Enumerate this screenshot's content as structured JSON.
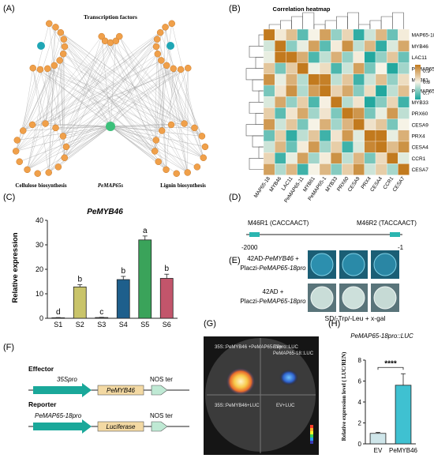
{
  "panels": {
    "A": {
      "letter": "(A)",
      "title": "Transcription factors",
      "left_label": "Cellulose biosynthesis",
      "center_label": "PeMAP65s",
      "right_label": "Lignin biosynthesis",
      "node_color": "#f0a04a",
      "edge_color": "#9a9a9a",
      "hub_green": "#3cc07a",
      "hub_teal": "#1fa6b5"
    },
    "B": {
      "letter": "(B)",
      "title": "Correlation heatmap",
      "rows": [
        "MAP65-18",
        "MYB46",
        "LAC11",
        "PeMAP65-11",
        "MYB61",
        "PeMAP65-1",
        "MYB33",
        "PRX60",
        "CESA9",
        "PRX4",
        "CESA4",
        "CCR1",
        "CESA7"
      ],
      "cols": [
        "MAP65-18",
        "MYB46",
        "LAC11",
        "PeMAP65-11",
        "MYB61",
        "PeMAP65-1",
        "MYB33",
        "PRX60",
        "CESA9",
        "PRX4",
        "CESA4",
        "CCR1",
        "CESA7"
      ],
      "legend_ticks": [
        "0.9",
        "0.8",
        "0.7"
      ],
      "high_color": "#c27a1e",
      "mid_color": "#f7f3e6",
      "low_color": "#14a39a"
    },
    "C": {
      "letter": "(C)"
    },
    "D": {
      "letter": "(D)",
      "left_label": "M46R1 (CACCAACT)",
      "right_label": "M46R2 (TACCAACT)",
      "left_pos": "-2000",
      "right_pos": "-1",
      "box_color": "#2bb5b0"
    },
    "E": {
      "letter": "(E)",
      "row1_a": "42AD-",
      "row1_b": "PeMYB46",
      "row1_c": " +",
      "row1_d": "Placzi-",
      "row1_e": "PeMAP65-18pro",
      "row2_a": "42AD +",
      "row2_b": "Placzi-",
      "row2_c": "PeMAP65-18pro",
      "medium": "SD/-Trp/-Leu + x-gal"
    },
    "F": {
      "letter": "(F)",
      "effector": "Effector",
      "reporter": "Reporter",
      "promoter1": "35Spro",
      "gene1": "PeMYB46",
      "ter1": "NOS ter",
      "promoter2": "PeMAP65-18pro",
      "gene2": "Luciferase",
      "ter2": "NOS ter",
      "arrow_color": "#1aa89a",
      "gene_color": "#f3d9a3",
      "ter_color": "#bfe9d4"
    },
    "G": {
      "letter": "(G)",
      "q1": "35S::PeMYB46 +PeMAP65-18pro::LUC",
      "q2a": "EV+",
      "q2b": "PeMAP65-18::LUC",
      "q3": "35S::PeMYB46+LUC",
      "q4": "EV+LUC"
    },
    "H": {
      "letter": "(H)"
    }
  },
  "chart_data": [
    {
      "type": "bar",
      "title": "PeMYB46",
      "ylabel": "Relative expression",
      "xlabel": "",
      "categories": [
        "S1",
        "S2",
        "S3",
        "S4",
        "S5",
        "S6"
      ],
      "values": [
        0.2,
        12.8,
        0.3,
        15.8,
        32.0,
        16.3
      ],
      "errors": [
        0.1,
        0.9,
        0.1,
        1.3,
        1.6,
        1.7
      ],
      "letters": [
        "d",
        "b",
        "c",
        "b",
        "a",
        "b"
      ],
      "colors": [
        "#4a7a4a",
        "#c9c46a",
        "#7a7a7a",
        "#1e5f8c",
        "#3aa35a",
        "#c2556b"
      ],
      "ylim": [
        0,
        40
      ],
      "yticks": [
        "0",
        "10",
        "20",
        "30",
        "40"
      ]
    },
    {
      "type": "bar",
      "title": "PeMAP65-18pro::LUC",
      "ylabel": "Relative expression level ( LUC/REN)",
      "xlabel": "",
      "categories": [
        "EV",
        "PeMYB46"
      ],
      "values": [
        1.0,
        5.6
      ],
      "errors": [
        0.1,
        1.1
      ],
      "colors": [
        "#cfe6ea",
        "#3fc1d1"
      ],
      "significance": "****",
      "ylim": [
        0,
        8
      ],
      "yticks": [
        "0",
        "2",
        "4",
        "6",
        "8"
      ]
    }
  ]
}
